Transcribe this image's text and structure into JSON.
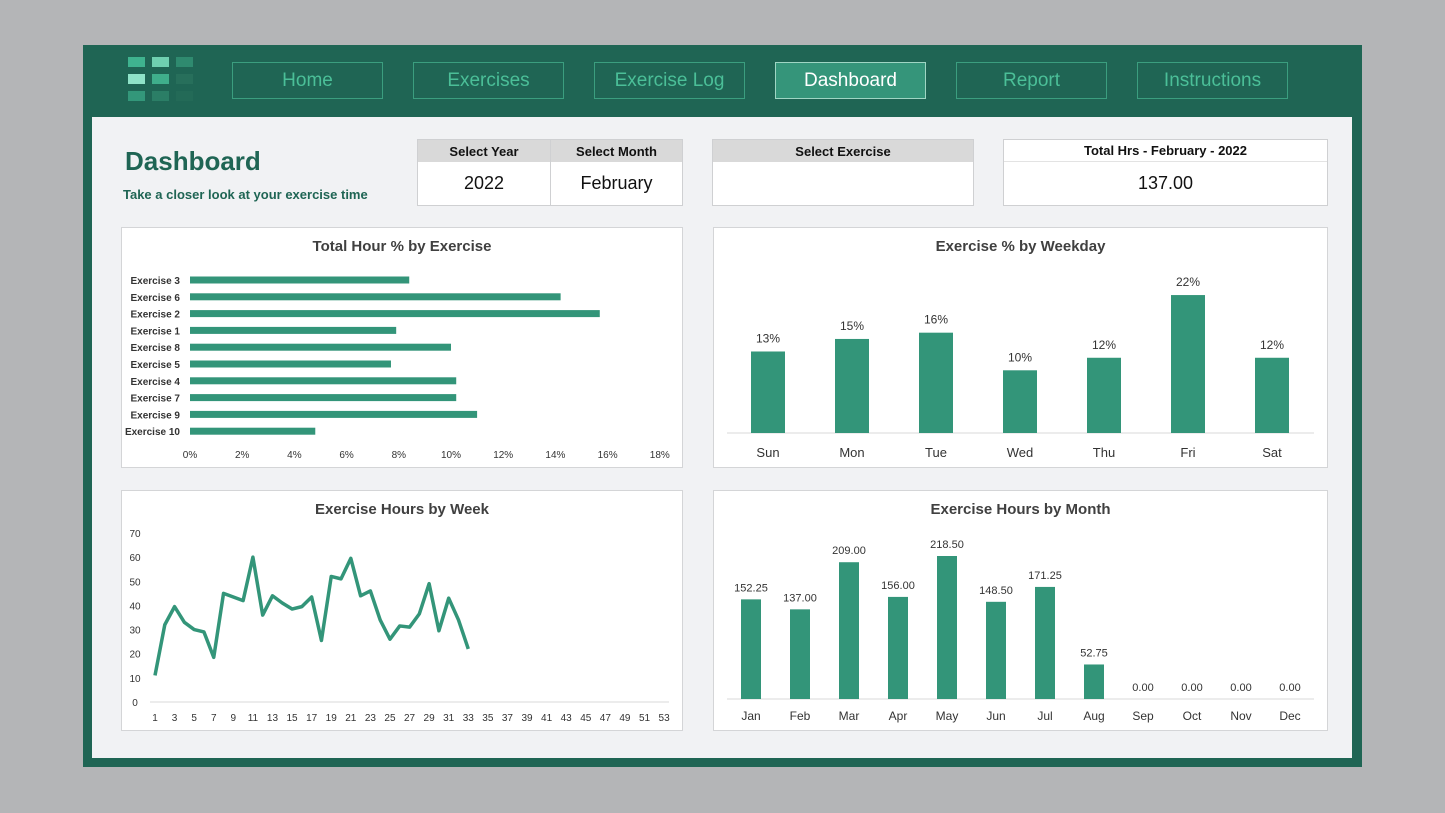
{
  "nav": {
    "items": [
      {
        "label": "Home"
      },
      {
        "label": "Exercises"
      },
      {
        "label": "Exercise Log"
      },
      {
        "label": "Dashboard",
        "active": true
      },
      {
        "label": "Report"
      },
      {
        "label": "Instructions"
      }
    ]
  },
  "header": {
    "title": "Dashboard",
    "subtitle": "Take a closer look at your exercise time"
  },
  "filters": {
    "year_label": "Select Year",
    "year_value": "2022",
    "month_label": "Select Month",
    "month_value": "February",
    "exercise_label": "Select Exercise",
    "exercise_value": ""
  },
  "total": {
    "label": "Total Hrs - February - 2022",
    "value": "137.00"
  },
  "colors": {
    "accent": "#339579",
    "frame": "#1f6554"
  },
  "chart_data": [
    {
      "type": "bar",
      "orientation": "horizontal",
      "title": "Total Hour % by Exercise",
      "categories": [
        "Exercise 3",
        "Exercise 6",
        "Exercise 2",
        "Exercise 1",
        "Exercise 8",
        "Exercise 5",
        "Exercise 4",
        "Exercise 7",
        "Exercise 9",
        "Exercise 10"
      ],
      "values": [
        8.4,
        14.2,
        15.7,
        7.9,
        10.0,
        7.7,
        10.2,
        10.2,
        11.0,
        4.8
      ],
      "xticks": [
        "0%",
        "2%",
        "4%",
        "6%",
        "8%",
        "10%",
        "12%",
        "14%",
        "16%",
        "18%"
      ],
      "xlim": [
        0,
        18
      ]
    },
    {
      "type": "bar",
      "title": "Exercise % by Weekday",
      "categories": [
        "Sun",
        "Mon",
        "Tue",
        "Wed",
        "Thu",
        "Fri",
        "Sat"
      ],
      "values": [
        13,
        15,
        16,
        10,
        12,
        22,
        12
      ],
      "labels": [
        "13%",
        "15%",
        "16%",
        "10%",
        "12%",
        "22%",
        "12%"
      ]
    },
    {
      "type": "line",
      "title": "Exercise Hours by Week",
      "x": [
        1,
        2,
        3,
        4,
        5,
        6,
        7,
        8,
        9,
        10,
        11,
        12,
        13,
        14,
        15,
        16,
        17,
        18,
        19,
        20,
        21,
        22,
        23,
        24,
        25,
        26,
        27,
        28,
        29,
        30,
        31,
        32,
        33
      ],
      "values": [
        11,
        32,
        39.5,
        33,
        30,
        29,
        18.5,
        45,
        43.5,
        42,
        60,
        36,
        44,
        41,
        38.5,
        39.5,
        43.5,
        25.5,
        52,
        51,
        59.5,
        44,
        46,
        34,
        26,
        31.5,
        31,
        36.5,
        49,
        29.5,
        43,
        34,
        22
      ],
      "yticks": [
        "0",
        "10",
        "20",
        "30",
        "40",
        "50",
        "60",
        "70"
      ],
      "ylim": [
        0,
        70
      ],
      "xticks": [
        "1",
        "3",
        "5",
        "7",
        "9",
        "11",
        "13",
        "15",
        "17",
        "19",
        "21",
        "23",
        "25",
        "27",
        "29",
        "31",
        "33",
        "35",
        "37",
        "39",
        "41",
        "43",
        "45",
        "47",
        "49",
        "51",
        "53"
      ]
    },
    {
      "type": "bar",
      "title": "Exercise Hours by Month",
      "categories": [
        "Jan",
        "Feb",
        "Mar",
        "Apr",
        "May",
        "Jun",
        "Jul",
        "Aug",
        "Sep",
        "Oct",
        "Nov",
        "Dec"
      ],
      "values": [
        152.25,
        137,
        209,
        156,
        218.5,
        148.5,
        171.25,
        52.75,
        0,
        0,
        0,
        0
      ],
      "labels": [
        "152.25",
        "137.00",
        "209.00",
        "156.00",
        "218.50",
        "148.50",
        "171.25",
        "52.75",
        "0.00",
        "0.00",
        "0.00",
        "0.00"
      ]
    }
  ]
}
